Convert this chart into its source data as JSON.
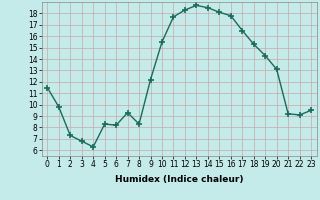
{
  "x": [
    0,
    1,
    2,
    3,
    4,
    5,
    6,
    7,
    8,
    9,
    10,
    11,
    12,
    13,
    14,
    15,
    16,
    17,
    18,
    19,
    20,
    21,
    22,
    23
  ],
  "y": [
    11.5,
    9.8,
    7.3,
    6.8,
    6.3,
    8.3,
    8.2,
    9.3,
    8.3,
    12.2,
    15.5,
    17.7,
    18.3,
    18.7,
    18.5,
    18.1,
    17.8,
    16.5,
    15.3,
    14.3,
    13.1,
    9.2,
    9.1,
    9.5
  ],
  "xlabel": "Humidex (Indice chaleur)",
  "xlim": [
    -0.5,
    23.5
  ],
  "ylim": [
    5.5,
    19.0
  ],
  "yticks": [
    6,
    7,
    8,
    9,
    10,
    11,
    12,
    13,
    14,
    15,
    16,
    17,
    18
  ],
  "xticks": [
    0,
    1,
    2,
    3,
    4,
    5,
    6,
    7,
    8,
    9,
    10,
    11,
    12,
    13,
    14,
    15,
    16,
    17,
    18,
    19,
    20,
    21,
    22,
    23
  ],
  "line_color": "#1a6b5a",
  "marker": "+",
  "marker_size": 4.0,
  "marker_lw": 1.2,
  "line_width": 1.0,
  "background_color": "#c5eaea",
  "grid_color": "#c8a8a8",
  "xlabel_fontsize": 6.5,
  "tick_fontsize": 5.5
}
